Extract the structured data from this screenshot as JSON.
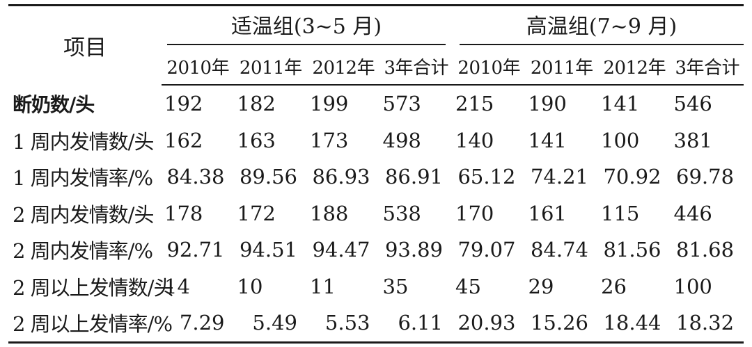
{
  "table": {
    "item_header": "项目",
    "groups": [
      {
        "label": "适温组(3~5 月)"
      },
      {
        "label": "高温组(7~9 月)"
      }
    ],
    "year_headers": [
      "2010年",
      "2011年",
      "2012年",
      "3年合计",
      "2010年",
      "2011年",
      "2012年",
      "3年合计"
    ],
    "rows": [
      {
        "label": "断奶数/头",
        "values": [
          "192",
          "182",
          "199",
          "573",
          "215",
          "190",
          "141",
          "546"
        ]
      },
      {
        "label": "1 周内发情数/头",
        "values": [
          "162",
          "163",
          "173",
          "498",
          "140",
          "141",
          "100",
          "381"
        ]
      },
      {
        "label": "1 周内发情率/%",
        "values": [
          "84.38",
          "89.56",
          "86.93",
          "86.91",
          "65.12",
          "74.21",
          "70.92",
          "69.78"
        ]
      },
      {
        "label": "2 周内发情数/头",
        "values": [
          "178",
          "172",
          "188",
          "538",
          "170",
          "161",
          "115",
          "446"
        ]
      },
      {
        "label": "2 周内发情率/%",
        "values": [
          "92.71",
          "94.51",
          "94.47",
          "93.89",
          "79.07",
          "84.74",
          "81.56",
          "81.68"
        ]
      },
      {
        "label": "2 周以上发情数/头",
        "values": [
          "14",
          "10",
          "11",
          "35",
          "45",
          "29",
          "26",
          "100"
        ]
      },
      {
        "label": "2 周以上发情率/%",
        "values": [
          "7.29",
          "5.49",
          "5.53",
          "6.11",
          "20.93",
          "15.26",
          "18.44",
          "18.32"
        ]
      }
    ]
  }
}
